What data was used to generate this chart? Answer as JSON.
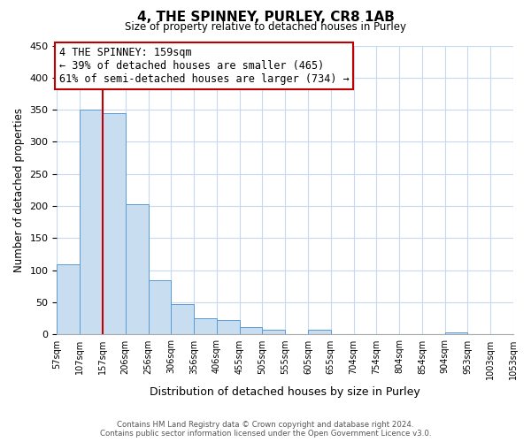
{
  "title": "4, THE SPINNEY, PURLEY, CR8 1AB",
  "subtitle": "Size of property relative to detached houses in Purley",
  "xlabel": "Distribution of detached houses by size in Purley",
  "ylabel": "Number of detached properties",
  "bar_values": [
    110,
    350,
    345,
    203,
    85,
    47,
    25,
    22,
    12,
    7,
    0,
    8,
    0,
    0,
    0,
    0,
    0,
    3,
    0,
    0
  ],
  "bin_labels": [
    "57sqm",
    "107sqm",
    "157sqm",
    "206sqm",
    "256sqm",
    "306sqm",
    "356sqm",
    "406sqm",
    "455sqm",
    "505sqm",
    "555sqm",
    "605sqm",
    "655sqm",
    "704sqm",
    "754sqm",
    "804sqm",
    "854sqm",
    "904sqm",
    "953sqm",
    "1003sqm",
    "1053sqm"
  ],
  "bar_color": "#c9ddf0",
  "bar_edge_color": "#5b9bd5",
  "marker_line_color": "#c00000",
  "marker_at_label_index": 2,
  "annotation_title": "4 THE SPINNEY: 159sqm",
  "annotation_line1": "← 39% of detached houses are smaller (465)",
  "annotation_line2": "61% of semi-detached houses are larger (734) →",
  "annotation_box_color": "#ffffff",
  "annotation_box_edge": "#c00000",
  "ylim": [
    0,
    450
  ],
  "yticks": [
    0,
    50,
    100,
    150,
    200,
    250,
    300,
    350,
    400,
    450
  ],
  "footer_line1": "Contains HM Land Registry data © Crown copyright and database right 2024.",
  "footer_line2": "Contains public sector information licensed under the Open Government Licence v3.0.",
  "background_color": "#ffffff",
  "grid_color": "#c6d9f0"
}
